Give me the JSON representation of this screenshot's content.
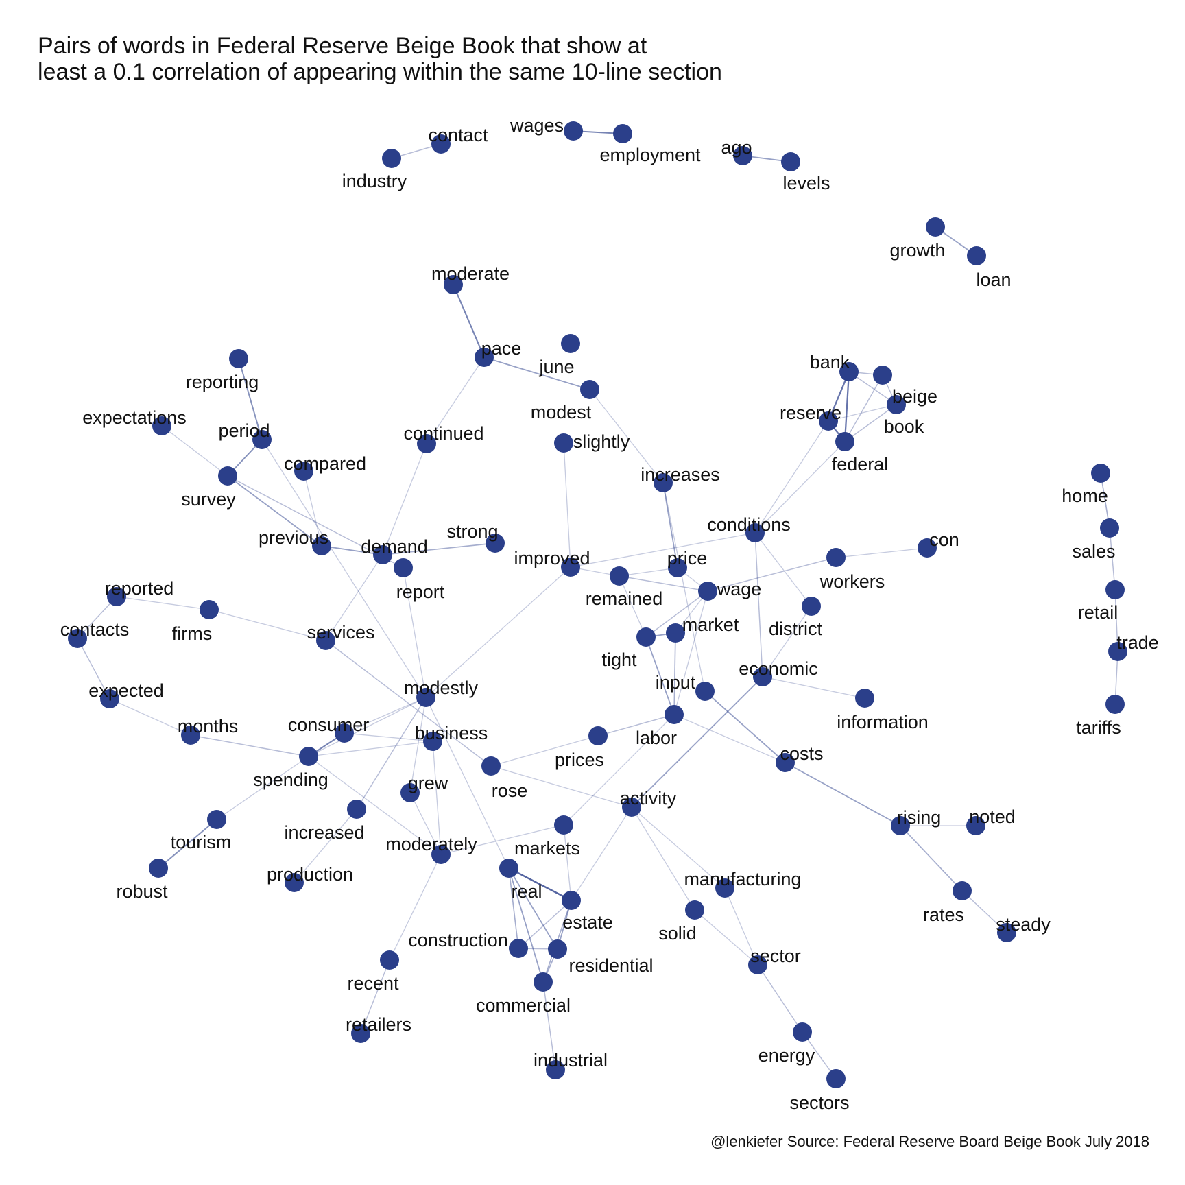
{
  "title": {
    "line1": "Pairs of words in Federal Reserve Beige Book that show at",
    "line2": "least a 0.1 correlation of appearing within the same 10-line section"
  },
  "caption": "@lenkiefer Source: Federal Reserve Board Beige Book July 2018",
  "colors": {
    "node": "#2b3f8a",
    "edge": "#2b3f8a",
    "background": "#ffffff"
  },
  "nodes": [
    {
      "id": "industry",
      "label": "industry"
    },
    {
      "id": "contact",
      "label": "contact"
    },
    {
      "id": "wages",
      "label": "wages"
    },
    {
      "id": "employment",
      "label": "employment"
    },
    {
      "id": "ago",
      "label": "ago"
    },
    {
      "id": "levels",
      "label": "levels"
    },
    {
      "id": "growth",
      "label": "growth"
    },
    {
      "id": "loan",
      "label": "loan"
    },
    {
      "id": "moderate",
      "label": "moderate"
    },
    {
      "id": "pace",
      "label": "pace"
    },
    {
      "id": "june",
      "label": "june"
    },
    {
      "id": "modest",
      "label": "modest"
    },
    {
      "id": "slightly",
      "label": "slightly"
    },
    {
      "id": "continued",
      "label": "continued"
    },
    {
      "id": "increases",
      "label": "increases"
    },
    {
      "id": "reporting",
      "label": "reporting"
    },
    {
      "id": "expectations",
      "label": "expectations"
    },
    {
      "id": "period",
      "label": "period"
    },
    {
      "id": "survey",
      "label": "survey"
    },
    {
      "id": "compared",
      "label": "compared"
    },
    {
      "id": "previous",
      "label": "previous"
    },
    {
      "id": "demand",
      "label": "demand"
    },
    {
      "id": "report",
      "label": "report"
    },
    {
      "id": "strong",
      "label": "strong"
    },
    {
      "id": "improved",
      "label": "improved"
    },
    {
      "id": "remained",
      "label": "remained"
    },
    {
      "id": "price",
      "label": "price"
    },
    {
      "id": "wage",
      "label": "wage"
    },
    {
      "id": "conditions",
      "label": "conditions"
    },
    {
      "id": "bank",
      "label": "bank"
    },
    {
      "id": "beige",
      "label": "beige"
    },
    {
      "id": "book",
      "label": "book"
    },
    {
      "id": "reserve",
      "label": "reserve"
    },
    {
      "id": "federal",
      "label": "federal"
    },
    {
      "id": "workers",
      "label": "workers"
    },
    {
      "id": "con",
      "label": "con"
    },
    {
      "id": "home",
      "label": "home"
    },
    {
      "id": "sales",
      "label": "sales"
    },
    {
      "id": "retail",
      "label": "retail"
    },
    {
      "id": "trade",
      "label": "trade"
    },
    {
      "id": "tariffs",
      "label": "tariffs"
    },
    {
      "id": "reported",
      "label": "reported"
    },
    {
      "id": "contacts",
      "label": "contacts"
    },
    {
      "id": "firms",
      "label": "firms"
    },
    {
      "id": "services",
      "label": "services"
    },
    {
      "id": "expected",
      "label": "expected"
    },
    {
      "id": "months",
      "label": "months"
    },
    {
      "id": "market",
      "label": "market"
    },
    {
      "id": "tight",
      "label": "tight"
    },
    {
      "id": "district",
      "label": "district"
    },
    {
      "id": "economic",
      "label": "economic"
    },
    {
      "id": "input",
      "label": "input"
    },
    {
      "id": "information",
      "label": "information"
    },
    {
      "id": "labor",
      "label": "labor"
    },
    {
      "id": "modestly",
      "label": "modestly"
    },
    {
      "id": "consumer",
      "label": "consumer"
    },
    {
      "id": "business",
      "label": "business"
    },
    {
      "id": "spending",
      "label": "spending"
    },
    {
      "id": "prices",
      "label": "prices"
    },
    {
      "id": "costs",
      "label": "costs"
    },
    {
      "id": "grew",
      "label": "grew"
    },
    {
      "id": "rose",
      "label": "rose"
    },
    {
      "id": "activity",
      "label": "activity"
    },
    {
      "id": "tourism",
      "label": "tourism"
    },
    {
      "id": "increased",
      "label": "increased"
    },
    {
      "id": "moderately",
      "label": "moderately"
    },
    {
      "id": "markets",
      "label": "markets"
    },
    {
      "id": "rising",
      "label": "rising"
    },
    {
      "id": "noted",
      "label": "noted"
    },
    {
      "id": "robust",
      "label": "robust"
    },
    {
      "id": "production",
      "label": "production"
    },
    {
      "id": "real",
      "label": "real"
    },
    {
      "id": "manufacturing",
      "label": "manufacturing"
    },
    {
      "id": "estate",
      "label": "estate"
    },
    {
      "id": "solid",
      "label": "solid"
    },
    {
      "id": "rates",
      "label": "rates"
    },
    {
      "id": "steady",
      "label": "steady"
    },
    {
      "id": "construction",
      "label": "construction"
    },
    {
      "id": "residential",
      "label": "residential"
    },
    {
      "id": "sector",
      "label": "sector"
    },
    {
      "id": "recent",
      "label": "recent"
    },
    {
      "id": "commercial",
      "label": "commercial"
    },
    {
      "id": "retailers",
      "label": "retailers"
    },
    {
      "id": "energy",
      "label": "energy"
    },
    {
      "id": "industrial",
      "label": "industrial"
    },
    {
      "id": "sectors",
      "label": "sectors"
    }
  ],
  "edges": [
    {
      "source": "industry",
      "target": "contact",
      "strength": 0.3
    },
    {
      "source": "wages",
      "target": "employment",
      "strength": 0.7
    },
    {
      "source": "ago",
      "target": "levels",
      "strength": 0.5
    },
    {
      "source": "growth",
      "target": "loan",
      "strength": 0.5
    },
    {
      "source": "moderate",
      "target": "pace",
      "strength": 0.7
    },
    {
      "source": "pace",
      "target": "modest",
      "strength": 0.5
    },
    {
      "source": "pace",
      "target": "continued",
      "strength": 0.2
    },
    {
      "source": "modest",
      "target": "increases",
      "strength": 0.2
    },
    {
      "source": "slightly",
      "target": "improved",
      "strength": 0.2
    },
    {
      "source": "continued",
      "target": "demand",
      "strength": 0.2
    },
    {
      "source": "reporting",
      "target": "period",
      "strength": 0.6
    },
    {
      "source": "period",
      "target": "survey",
      "strength": 0.6
    },
    {
      "source": "period",
      "target": "modestly",
      "strength": 0.2
    },
    {
      "source": "expectations",
      "target": "survey",
      "strength": 0.2
    },
    {
      "source": "survey",
      "target": "previous",
      "strength": 0.5
    },
    {
      "source": "survey",
      "target": "report",
      "strength": 0.3
    },
    {
      "source": "compared",
      "target": "previous",
      "strength": 0.2
    },
    {
      "source": "previous",
      "target": "demand",
      "strength": 0.5
    },
    {
      "source": "demand",
      "target": "strong",
      "strength": 0.4
    },
    {
      "source": "demand",
      "target": "services",
      "strength": 0.2
    },
    {
      "source": "report",
      "target": "modestly",
      "strength": 0.2
    },
    {
      "source": "improved",
      "target": "conditions",
      "strength": 0.2
    },
    {
      "source": "improved",
      "target": "remained",
      "strength": 0.2
    },
    {
      "source": "improved",
      "target": "modestly",
      "strength": 0.2
    },
    {
      "source": "remained",
      "target": "price",
      "strength": 0.2
    },
    {
      "source": "remained",
      "target": "wage",
      "strength": 0.3
    },
    {
      "source": "remained",
      "target": "tight",
      "strength": 0.2
    },
    {
      "source": "price",
      "target": "increases",
      "strength": 0.5
    },
    {
      "source": "price",
      "target": "wage",
      "strength": 0.2
    },
    {
      "source": "increases",
      "target": "input",
      "strength": 0.2
    },
    {
      "source": "wage",
      "target": "workers",
      "strength": 0.3
    },
    {
      "source": "wage",
      "target": "tight",
      "strength": 0.3
    },
    {
      "source": "wage",
      "target": "market",
      "strength": 0.2
    },
    {
      "source": "wage",
      "target": "labor",
      "strength": 0.2
    },
    {
      "source": "workers",
      "target": "con",
      "strength": 0.2
    },
    {
      "source": "conditions",
      "target": "reserve",
      "strength": 0.2
    },
    {
      "source": "conditions",
      "target": "federal",
      "strength": 0.2
    },
    {
      "source": "conditions",
      "target": "economic",
      "strength": 0.3
    },
    {
      "source": "conditions",
      "target": "district",
      "strength": 0.2
    },
    {
      "source": "bank",
      "target": "beige",
      "strength": 0.3
    },
    {
      "source": "bank",
      "target": "book",
      "strength": 0.3
    },
    {
      "source": "bank",
      "target": "reserve",
      "strength": 0.8
    },
    {
      "source": "bank",
      "target": "federal",
      "strength": 0.8
    },
    {
      "source": "beige",
      "target": "book",
      "strength": 0.3
    },
    {
      "source": "beige",
      "target": "federal",
      "strength": 0.3
    },
    {
      "source": "book",
      "target": "reserve",
      "strength": 0.2
    },
    {
      "source": "book",
      "target": "federal",
      "strength": 0.3
    },
    {
      "source": "reserve",
      "target": "federal",
      "strength": 0.8
    },
    {
      "source": "home",
      "target": "sales",
      "strength": 0.4
    },
    {
      "source": "sales",
      "target": "retail",
      "strength": 0.3
    },
    {
      "source": "retail",
      "target": "trade",
      "strength": 0.3
    },
    {
      "source": "trade",
      "target": "tariffs",
      "strength": 0.3
    },
    {
      "source": "reported",
      "target": "contacts",
      "strength": 0.3
    },
    {
      "source": "reported",
      "target": "firms",
      "strength": 0.2
    },
    {
      "source": "contacts",
      "target": "expected",
      "strength": 0.3
    },
    {
      "source": "firms",
      "target": "services",
      "strength": 0.2
    },
    {
      "source": "services",
      "target": "rose",
      "strength": 0.3
    },
    {
      "source": "expected",
      "target": "months",
      "strength": 0.2
    },
    {
      "source": "months",
      "target": "spending",
      "strength": 0.3
    },
    {
      "source": "market",
      "target": "tight",
      "strength": 0.5
    },
    {
      "source": "market",
      "target": "labor",
      "strength": 0.4
    },
    {
      "source": "tight",
      "target": "labor",
      "strength": 0.5
    },
    {
      "source": "district",
      "target": "economic",
      "strength": 0.2
    },
    {
      "source": "economic",
      "target": "information",
      "strength": 0.2
    },
    {
      "source": "economic",
      "target": "activity",
      "strength": 0.5
    },
    {
      "source": "input",
      "target": "costs",
      "strength": 0.5
    },
    {
      "source": "labor",
      "target": "prices",
      "strength": 0.3
    },
    {
      "source": "labor",
      "target": "costs",
      "strength": 0.2
    },
    {
      "source": "labor",
      "target": "markets",
      "strength": 0.2
    },
    {
      "source": "modestly",
      "target": "consumer",
      "strength": 0.2
    },
    {
      "source": "modestly",
      "target": "spending",
      "strength": 0.2
    },
    {
      "source": "modestly",
      "target": "grew",
      "strength": 0.2
    },
    {
      "source": "modestly",
      "target": "increased",
      "strength": 0.3
    },
    {
      "source": "modestly",
      "target": "real",
      "strength": 0.2
    },
    {
      "source": "consumer",
      "target": "spending",
      "strength": 0.7
    },
    {
      "source": "consumer",
      "target": "business",
      "strength": 0.2
    },
    {
      "source": "business",
      "target": "spending",
      "strength": 0.2
    },
    {
      "source": "business",
      "target": "moderately",
      "strength": 0.2
    },
    {
      "source": "spending",
      "target": "tourism",
      "strength": 0.2
    },
    {
      "source": "spending",
      "target": "moderately",
      "strength": 0.2
    },
    {
      "source": "prices",
      "target": "rose",
      "strength": 0.2
    },
    {
      "source": "rose",
      "target": "activity",
      "strength": 0.2
    },
    {
      "source": "costs",
      "target": "rising",
      "strength": 0.5
    },
    {
      "source": "grew",
      "target": "moderately",
      "strength": 0.2
    },
    {
      "source": "activity",
      "target": "manufacturing",
      "strength": 0.2
    },
    {
      "source": "activity",
      "target": "solid",
      "strength": 0.2
    },
    {
      "source": "activity",
      "target": "estate",
      "strength": 0.2
    },
    {
      "source": "tourism",
      "target": "robust",
      "strength": 0.6
    },
    {
      "source": "increased",
      "target": "production",
      "strength": 0.2
    },
    {
      "source": "moderately",
      "target": "markets",
      "strength": 0.2
    },
    {
      "source": "moderately",
      "target": "recent",
      "strength": 0.2
    },
    {
      "source": "markets",
      "target": "estate",
      "strength": 0.2
    },
    {
      "source": "rising",
      "target": "noted",
      "strength": 0.2
    },
    {
      "source": "rising",
      "target": "rates",
      "strength": 0.4
    },
    {
      "source": "rates",
      "target": "steady",
      "strength": 0.3
    },
    {
      "source": "real",
      "target": "estate",
      "strength": 0.9
    },
    {
      "source": "real",
      "target": "residential",
      "strength": 0.5
    },
    {
      "source": "real",
      "target": "commercial",
      "strength": 0.5
    },
    {
      "source": "real",
      "target": "construction",
      "strength": 0.4
    },
    {
      "source": "estate",
      "target": "residential",
      "strength": 0.5
    },
    {
      "source": "estate",
      "target": "commercial",
      "strength": 0.4
    },
    {
      "source": "estate",
      "target": "construction",
      "strength": 0.3
    },
    {
      "source": "construction",
      "target": "residential",
      "strength": 0.3
    },
    {
      "source": "residential",
      "target": "commercial",
      "strength": 0.4
    },
    {
      "source": "commercial",
      "target": "industrial",
      "strength": 0.3
    },
    {
      "source": "manufacturing",
      "target": "sector",
      "strength": 0.2
    },
    {
      "source": "solid",
      "target": "sector",
      "strength": 0.2
    },
    {
      "source": "sector",
      "target": "energy",
      "strength": 0.3
    },
    {
      "source": "energy",
      "target": "sectors",
      "strength": 0.3
    },
    {
      "source": "recent",
      "target": "retailers",
      "strength": 0.3
    }
  ]
}
